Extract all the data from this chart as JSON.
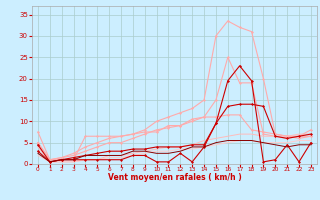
{
  "bg_color": "#cceeff",
  "grid_color": "#aacccc",
  "xlabel": "Vent moyen/en rafales ( km/h )",
  "xlabel_color": "#cc0000",
  "tick_color": "#cc0000",
  "xlim": [
    -0.5,
    23.5
  ],
  "ylim": [
    0,
    37
  ],
  "yticks": [
    0,
    5,
    10,
    15,
    20,
    25,
    30,
    35
  ],
  "xticks": [
    0,
    1,
    2,
    3,
    4,
    5,
    6,
    7,
    8,
    9,
    10,
    11,
    12,
    13,
    14,
    15,
    16,
    17,
    18,
    19,
    20,
    21,
    22,
    23
  ],
  "series": [
    {
      "x": [
        0,
        1,
        2,
        3,
        4,
        5,
        6,
        7,
        8,
        9,
        10,
        11,
        12,
        13,
        14,
        15,
        16,
        17,
        18,
        19,
        20,
        21,
        22,
        23
      ],
      "y": [
        5,
        1,
        1.5,
        2.5,
        4,
        5,
        6,
        6.5,
        7,
        8,
        10,
        11,
        12,
        13,
        15,
        30,
        33.5,
        32,
        31,
        20,
        7,
        6.5,
        6,
        6.5
      ],
      "color": "#ffaaaa",
      "lw": 0.8,
      "marker": "D",
      "ms": 1.5
    },
    {
      "x": [
        0,
        1,
        2,
        3,
        4,
        5,
        6,
        7,
        8,
        9,
        10,
        11,
        12,
        13,
        14,
        15,
        16,
        17,
        18,
        19,
        20,
        21,
        22,
        23
      ],
      "y": [
        5,
        1,
        1.5,
        2,
        3,
        4,
        5,
        5,
        6,
        7,
        8,
        8.5,
        9,
        10,
        11,
        15,
        25,
        19,
        19,
        7,
        6.5,
        6,
        6.5,
        8
      ],
      "color": "#ffaaaa",
      "lw": 0.8,
      "marker": "D",
      "ms": 1.5
    },
    {
      "x": [
        0,
        1,
        2,
        3,
        4,
        5,
        6,
        7,
        8,
        9,
        10,
        11,
        12,
        13,
        14,
        15,
        16,
        17,
        18,
        19,
        20,
        21,
        22,
        23
      ],
      "y": [
        7.5,
        1,
        1,
        1,
        6.5,
        6.5,
        6.5,
        6.5,
        7,
        7.5,
        7.5,
        9,
        9,
        10.5,
        11,
        11,
        11.5,
        11.5,
        8,
        7.5,
        7,
        6.5,
        6.5,
        6.5
      ],
      "color": "#ffaaaa",
      "lw": 0.8,
      "marker": "D",
      "ms": 1.5
    },
    {
      "x": [
        0,
        1,
        2,
        3,
        4,
        5,
        6,
        7,
        8,
        9,
        10,
        11,
        12,
        13,
        14,
        15,
        16,
        17,
        18,
        19,
        20,
        21,
        22,
        23
      ],
      "y": [
        4,
        0.5,
        0.5,
        0.5,
        1,
        1,
        2,
        2,
        2.5,
        3,
        3.5,
        4,
        4,
        4.5,
        5.5,
        6,
        6.5,
        7,
        7,
        6.5,
        6.5,
        6.5,
        7,
        7
      ],
      "color": "#ffbbbb",
      "lw": 0.7,
      "marker": null,
      "ms": 0
    },
    {
      "x": [
        0,
        1,
        2,
        3,
        4,
        5,
        6,
        7,
        8,
        9,
        10,
        11,
        12,
        13,
        14,
        15,
        16,
        17,
        18,
        19,
        20,
        21,
        22,
        23
      ],
      "y": [
        2,
        0.5,
        0.5,
        0.5,
        1,
        1,
        1.5,
        1.5,
        2,
        2.5,
        3,
        3,
        3.5,
        3.5,
        4,
        4.5,
        5,
        5.5,
        5.5,
        5,
        5,
        5,
        5.5,
        5.5
      ],
      "color": "#ffcccc",
      "lw": 0.7,
      "marker": null,
      "ms": 0
    },
    {
      "x": [
        0,
        1,
        2,
        3,
        4,
        5,
        6,
        7,
        8,
        9,
        10,
        11,
        12,
        13,
        14,
        15,
        16,
        17,
        18,
        19,
        20,
        21,
        22,
        23
      ],
      "y": [
        3,
        0.5,
        1,
        1.5,
        2,
        2.5,
        3,
        3,
        3.5,
        3.5,
        4,
        4,
        4,
        4.5,
        4.5,
        9.5,
        13.5,
        14,
        14,
        13.5,
        6.5,
        6,
        6.5,
        7
      ],
      "color": "#cc0000",
      "lw": 0.8,
      "marker": "D",
      "ms": 1.5
    },
    {
      "x": [
        0,
        1,
        2,
        3,
        4,
        5,
        6,
        7,
        8,
        9,
        10,
        11,
        12,
        13,
        14,
        15,
        16,
        17,
        18,
        19,
        20,
        21,
        22,
        23
      ],
      "y": [
        4.5,
        0.5,
        1,
        1,
        1,
        1,
        1,
        1,
        2,
        2,
        0.5,
        0.5,
        2.5,
        0.5,
        4,
        9.5,
        19.5,
        23,
        19.5,
        0.5,
        1,
        4.5,
        0.5,
        5
      ],
      "color": "#cc0000",
      "lw": 0.8,
      "marker": "D",
      "ms": 1.5
    },
    {
      "x": [
        0,
        1,
        2,
        3,
        4,
        5,
        6,
        7,
        8,
        9,
        10,
        11,
        12,
        13,
        14,
        15,
        16,
        17,
        18,
        19,
        20,
        21,
        22,
        23
      ],
      "y": [
        2.5,
        0.5,
        1,
        1,
        2,
        2,
        2,
        2,
        3,
        3,
        2.5,
        2.5,
        3,
        4,
        4,
        5,
        5.5,
        5.5,
        5.5,
        5,
        4.5,
        4,
        4.5,
        4.5
      ],
      "color": "#880000",
      "lw": 0.7,
      "marker": null,
      "ms": 0
    }
  ]
}
